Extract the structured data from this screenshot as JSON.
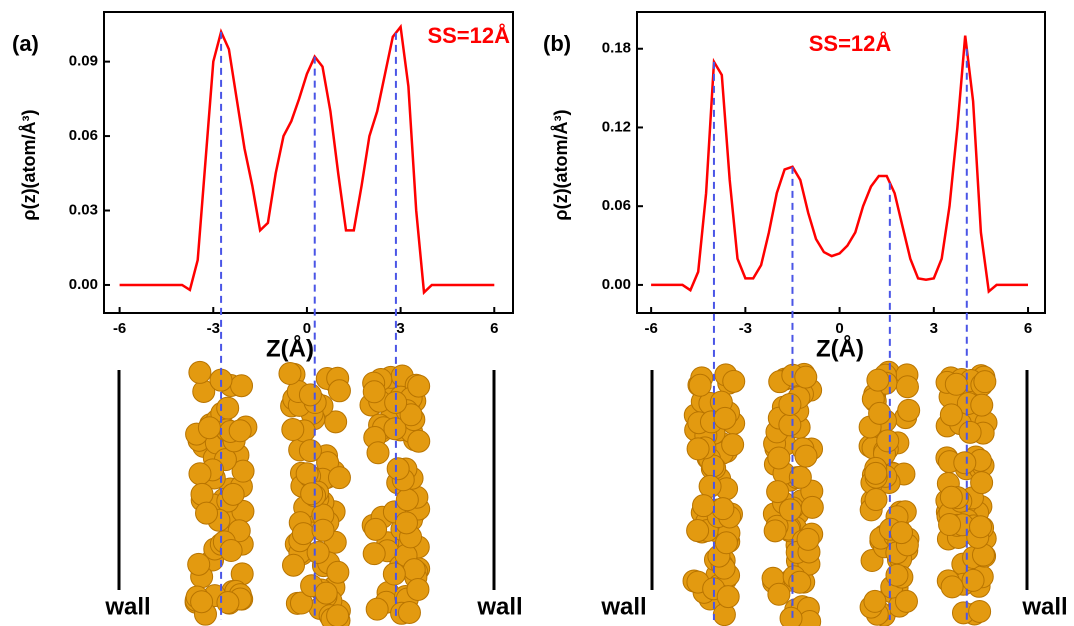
{
  "chart_data": [
    {
      "type": "line",
      "panel_label": "(a)",
      "annotation": "SS=12Å",
      "x_label": "Z(Å)",
      "y_label": "ρ(z)(atom/Å³)",
      "wall_labels": [
        "wall",
        "wall"
      ],
      "color": "#ff0000",
      "grid": false,
      "x": [
        -6,
        -5.75,
        -5.5,
        -5.25,
        -5,
        -4.75,
        -4.5,
        -4.25,
        -4,
        -3.75,
        -3.5,
        -3.25,
        -3,
        -2.75,
        -2.5,
        -2.25,
        -2,
        -1.75,
        -1.5,
        -1.25,
        -1,
        -0.75,
        -0.5,
        -0.25,
        0,
        0.25,
        0.5,
        0.75,
        1,
        1.25,
        1.5,
        1.75,
        2,
        2.25,
        2.5,
        2.75,
        3,
        3.25,
        3.5,
        3.75,
        4,
        4.25,
        4.5,
        4.75,
        5,
        5.25,
        5.5,
        5.75,
        6
      ],
      "values": [
        0,
        0,
        0,
        0,
        0,
        0,
        0,
        0,
        0,
        -0.002,
        0.01,
        0.05,
        0.09,
        0.102,
        0.095,
        0.075,
        0.055,
        0.04,
        0.022,
        0.025,
        0.045,
        0.06,
        0.066,
        0.075,
        0.085,
        0.092,
        0.088,
        0.07,
        0.045,
        0.022,
        0.022,
        0.04,
        0.06,
        0.07,
        0.085,
        0.1,
        0.104,
        0.08,
        0.03,
        -0.003,
        0,
        0,
        0,
        0,
        0,
        0,
        0,
        0,
        0
      ],
      "dashed_lines": [
        -2.75,
        0.25,
        2.85
      ],
      "xlim": [
        -6.5,
        6.6
      ],
      "ylim": [
        -0.0113,
        0.11
      ],
      "xticks": [
        -6,
        -3,
        0,
        3,
        6
      ],
      "yticks": [
        {
          "value": 0,
          "label": "0.00"
        },
        0.03,
        0.06,
        0.09
      ]
    },
    {
      "type": "line",
      "panel_label": "(b)",
      "annotation": "SS=12Å",
      "x_label": "Z(Å)",
      "y_label": "ρ(z)(atom/Å³)",
      "wall_labels": [
        "wall",
        "wall"
      ],
      "color": "#ff0000",
      "grid": false,
      "x": [
        -6,
        -5.75,
        -5.5,
        -5.25,
        -5,
        -4.75,
        -4.5,
        -4.25,
        -4,
        -3.75,
        -3.5,
        -3.25,
        -3,
        -2.75,
        -2.5,
        -2.25,
        -2,
        -1.75,
        -1.5,
        -1.25,
        -1,
        -0.75,
        -0.5,
        -0.25,
        0,
        0.25,
        0.5,
        0.75,
        1,
        1.25,
        1.5,
        1.75,
        2,
        2.25,
        2.5,
        2.75,
        3,
        3.25,
        3.5,
        3.75,
        4,
        4.25,
        4.5,
        4.75,
        5,
        5.25,
        5.5,
        5.75,
        6
      ],
      "values": [
        0,
        0,
        0,
        0,
        0,
        -0.004,
        0.01,
        0.07,
        0.17,
        0.16,
        0.08,
        0.02,
        0.005,
        0.005,
        0.015,
        0.04,
        0.07,
        0.088,
        0.09,
        0.08,
        0.055,
        0.035,
        0.025,
        0.022,
        0.024,
        0.03,
        0.04,
        0.06,
        0.075,
        0.083,
        0.083,
        0.07,
        0.045,
        0.02,
        0.005,
        0.004,
        0.005,
        0.02,
        0.06,
        0.12,
        0.19,
        0.14,
        0.04,
        -0.005,
        0,
        0,
        0,
        0,
        0
      ],
      "dashed_lines": [
        -4.0,
        -1.5,
        1.6,
        4.05
      ],
      "xlim": [
        -6.45,
        6.54
      ],
      "ylim": [
        -0.0214,
        0.208
      ],
      "xticks": [
        -6,
        -3,
        0,
        3,
        6
      ],
      "yticks": [
        {
          "value": 0,
          "label": "0.00"
        },
        0.06,
        0.12,
        0.18
      ]
    }
  ]
}
